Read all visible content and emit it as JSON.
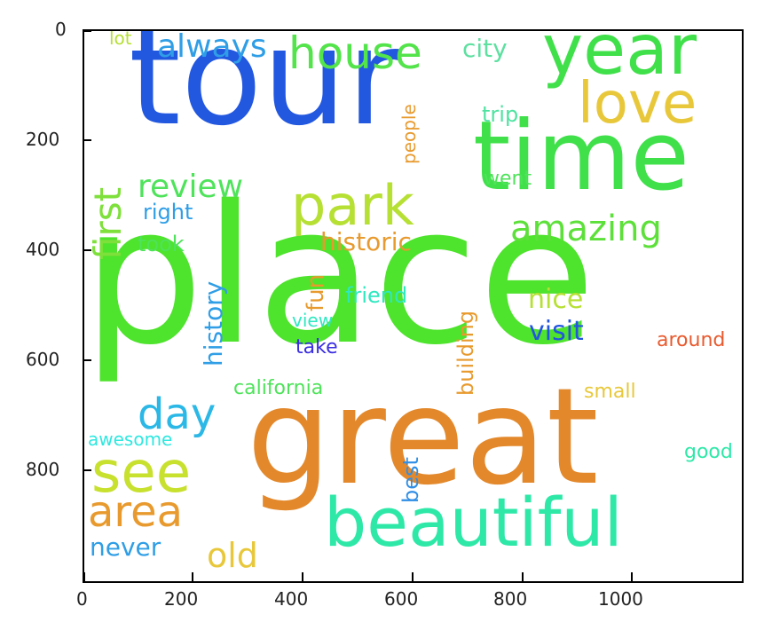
{
  "words": [
    {
      "id": "place",
      "text": "place",
      "color": "#4ee32c"
    },
    {
      "id": "tour",
      "text": "tour",
      "color": "#2257e0"
    },
    {
      "id": "great",
      "text": "great",
      "color": "#e3892c"
    },
    {
      "id": "time",
      "text": "time",
      "color": "#3fe04a"
    },
    {
      "id": "year",
      "text": "year",
      "color": "#3fe04a"
    },
    {
      "id": "beautiful",
      "text": "beautiful",
      "color": "#2ee8a8"
    },
    {
      "id": "house",
      "text": "house",
      "color": "#53e34a"
    },
    {
      "id": "park",
      "text": "park",
      "color": "#b6e033"
    },
    {
      "id": "love",
      "text": "love",
      "color": "#e8c83a"
    },
    {
      "id": "see",
      "text": "see",
      "color": "#c8e02e"
    },
    {
      "id": "first",
      "text": "first",
      "color": "#7ee03a"
    },
    {
      "id": "always",
      "text": "always",
      "color": "#2f9ee6"
    },
    {
      "id": "area",
      "text": "area",
      "color": "#e89a2e"
    },
    {
      "id": "day",
      "text": "day",
      "color": "#2bb8e6"
    },
    {
      "id": "review",
      "text": "review",
      "color": "#4ee35a"
    },
    {
      "id": "amazing",
      "text": "amazing",
      "color": "#5de03a"
    },
    {
      "id": "old",
      "text": "old",
      "color": "#e8c83a"
    },
    {
      "id": "history",
      "text": "history",
      "color": "#2f9ee6"
    },
    {
      "id": "historic",
      "text": "historic",
      "color": "#e89a2e"
    },
    {
      "id": "visit",
      "text": "visit",
      "color": "#2255e0"
    },
    {
      "id": "building",
      "text": "building",
      "color": "#e89a2e"
    },
    {
      "id": "never",
      "text": "never",
      "color": "#2f9ee6"
    },
    {
      "id": "nice",
      "text": "nice",
      "color": "#b6e033"
    },
    {
      "id": "best",
      "text": "best",
      "color": "#2f8ee6"
    },
    {
      "id": "fun",
      "text": "fun",
      "color": "#e89a2e"
    },
    {
      "id": "city",
      "text": "city",
      "color": "#5de0a0"
    },
    {
      "id": "trip",
      "text": "trip",
      "color": "#4ee3a0"
    },
    {
      "id": "right",
      "text": "right",
      "color": "#2f9ee6"
    },
    {
      "id": "took",
      "text": "took",
      "color": "#4ee35a"
    },
    {
      "id": "friend",
      "text": "friend",
      "color": "#2ee8c0"
    },
    {
      "id": "california",
      "text": "california",
      "color": "#4ee35a"
    },
    {
      "id": "went",
      "text": "went",
      "color": "#4ee35a"
    },
    {
      "id": "people",
      "text": "people",
      "color": "#e89a2e"
    },
    {
      "id": "around",
      "text": "around",
      "color": "#e85a2e"
    },
    {
      "id": "view",
      "text": "view",
      "color": "#2ee8c0"
    },
    {
      "id": "take",
      "text": "take",
      "color": "#3a2ee0"
    },
    {
      "id": "small",
      "text": "small",
      "color": "#e8c83a"
    },
    {
      "id": "good",
      "text": "good",
      "color": "#2ee8a8"
    },
    {
      "id": "awesome",
      "text": "awesome",
      "color": "#2ee8e0"
    },
    {
      "id": "lot",
      "text": "lot",
      "color": "#b6e033"
    }
  ],
  "axes": {
    "x_ticks": [
      "0",
      "200",
      "400",
      "600",
      "800",
      "1000"
    ],
    "y_ticks": [
      "0",
      "200",
      "400",
      "600",
      "800"
    ]
  }
}
